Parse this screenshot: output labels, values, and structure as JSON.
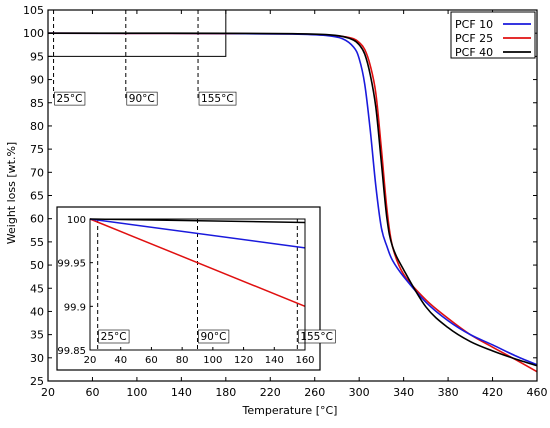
{
  "chart_data": [
    {
      "type": "line",
      "title": "",
      "xlabel": "Temperature [°C]",
      "ylabel": "Weight loss [wt.%]",
      "xlim": [
        20,
        460
      ],
      "ylim": [
        25,
        105
      ],
      "xticks": [
        20,
        60,
        100,
        140,
        180,
        220,
        260,
        300,
        340,
        380,
        420,
        460
      ],
      "yticks": [
        25,
        30,
        35,
        40,
        45,
        50,
        55,
        60,
        65,
        70,
        75,
        80,
        85,
        90,
        95,
        100,
        105
      ],
      "legend": "top-right",
      "series": [
        {
          "name": "PCF 10",
          "color": "#1a1adc",
          "x": [
            20,
            100,
            180,
            240,
            270,
            285,
            295,
            300,
            305,
            310,
            315,
            320,
            325,
            330,
            340,
            360,
            380,
            400,
            420,
            440,
            460
          ],
          "y": [
            100,
            99.97,
            99.93,
            99.8,
            99.5,
            98.8,
            97,
            94.5,
            89,
            79,
            67,
            58,
            54,
            51,
            47.5,
            42,
            38,
            35,
            32.8,
            30.5,
            28.5
          ]
        },
        {
          "name": "PCF 25",
          "color": "#e01010",
          "x": [
            20,
            100,
            180,
            240,
            270,
            285,
            295,
            300,
            305,
            310,
            315,
            320,
            325,
            330,
            340,
            360,
            380,
            400,
            420,
            440,
            460
          ],
          "y": [
            100,
            99.95,
            99.9,
            99.85,
            99.6,
            99.3,
            98.8,
            98,
            96.5,
            93,
            87,
            75,
            62,
            54,
            48,
            42.5,
            38.5,
            35,
            32.3,
            29.7,
            27
          ]
        },
        {
          "name": "PCF 40",
          "color": "#000000",
          "x": [
            20,
            100,
            180,
            240,
            270,
            285,
            295,
            300,
            305,
            310,
            315,
            320,
            325,
            330,
            340,
            360,
            380,
            400,
            420,
            440,
            460
          ],
          "y": [
            100,
            99.99,
            99.98,
            99.9,
            99.7,
            99.3,
            98.5,
            97.5,
            95.5,
            91,
            84,
            72,
            60,
            54,
            49,
            41,
            36.5,
            33.5,
            31.5,
            29.8,
            28.3
          ]
        }
      ],
      "box": {
        "x": [
          20,
          180
        ],
        "y": [
          95,
          105
        ]
      },
      "markers": [
        {
          "x": 25,
          "label": "25°C"
        },
        {
          "x": 90,
          "label": "90°C"
        },
        {
          "x": 155,
          "label": "155°C"
        }
      ]
    },
    {
      "type": "line",
      "title": "",
      "xlabel": "",
      "ylabel": "",
      "xlim": [
        20,
        160
      ],
      "ylim": [
        99.85,
        100
      ],
      "xticks": [
        20,
        40,
        60,
        80,
        100,
        120,
        140,
        160
      ],
      "yticks": [
        99.85,
        99.9,
        99.95,
        100
      ],
      "ytick_labels": [
        "99.85",
        "99.9",
        "99.95",
        "100"
      ],
      "series": [
        {
          "name": "PCF 10",
          "color": "#1a1adc",
          "x": [
            20,
            160
          ],
          "y": [
            100,
            99.967
          ]
        },
        {
          "name": "PCF 25",
          "color": "#e01010",
          "x": [
            20,
            160
          ],
          "y": [
            100,
            99.9
          ]
        },
        {
          "name": "PCF 40",
          "color": "#000000",
          "x": [
            20,
            160
          ],
          "y": [
            100,
            99.996
          ]
        }
      ],
      "markers": [
        {
          "x": 25,
          "label": "25°C"
        },
        {
          "x": 90,
          "label": "90°C"
        },
        {
          "x": 155,
          "label": "155°C"
        }
      ]
    }
  ]
}
